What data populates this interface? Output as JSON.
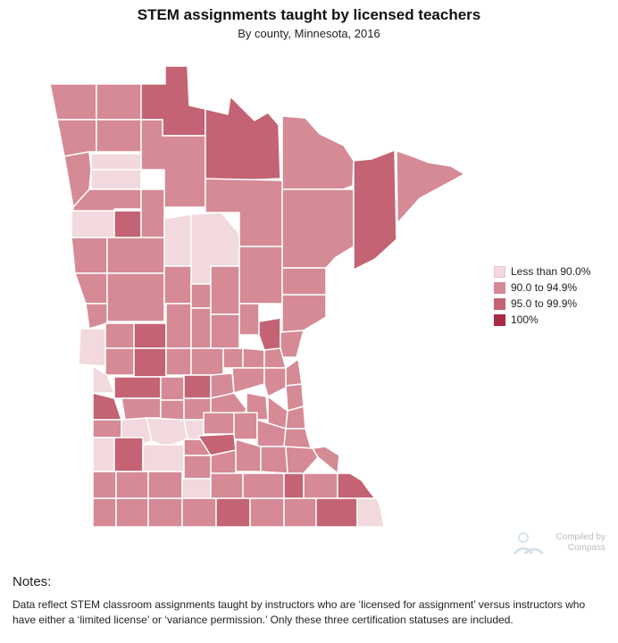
{
  "title": "STEM assignments taught by licensed teachers",
  "subtitle": "By county, Minnesota, 2016",
  "legend": [
    {
      "label": "Less than 90.0%",
      "color": "#f2d9dd"
    },
    {
      "label": "90.0 to 94.9%",
      "color": "#d58a95"
    },
    {
      "label": "95.0 to 99.9%",
      "color": "#c46373"
    },
    {
      "label": "100%",
      "color": "#a82a45"
    }
  ],
  "notes": {
    "heading": "Notes:",
    "text": "Data reflect STEM classroom assignments taught by instructors who are ‘licensed for assignment’ versus instructors who have either a ‘limited license’ or ‘variance permission.’ Only these three certification statuses are included."
  },
  "credit": {
    "line1": "Compiled by",
    "line2": "Compass"
  },
  "colors": {
    "outline": "#e6e6e6",
    "state_border": "#d9d9d9"
  }
}
